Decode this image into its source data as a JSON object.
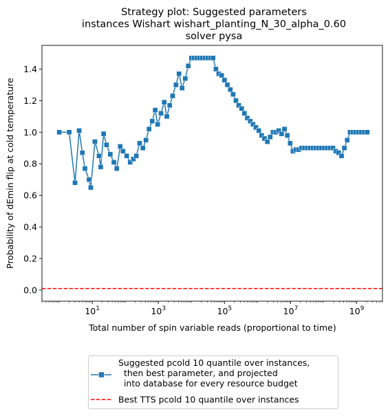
{
  "chart_data": {
    "type": "line",
    "title": [
      "Strategy plot: Suggested parameters",
      "instances Wishart wishart_planting_N_30_alpha_0.60",
      "solver pysa"
    ],
    "xlabel": "Total number of spin variable reads (proportional to time)",
    "ylabel": "Probability of dEmin flip at cold temperature",
    "xscale": "log",
    "xlim": [
      0.3,
      6000000000.0
    ],
    "ylim": [
      -0.07,
      1.55
    ],
    "x_ticks": [
      {
        "value": 10,
        "base": "10",
        "exp": "1"
      },
      {
        "value": 1000,
        "base": "10",
        "exp": "3"
      },
      {
        "value": 100000,
        "base": "10",
        "exp": "5"
      },
      {
        "value": 10000000,
        "base": "10",
        "exp": "7"
      },
      {
        "value": 1000000000,
        "base": "10",
        "exp": "9"
      }
    ],
    "y_ticks": [
      "0.0",
      "0.2",
      "0.4",
      "0.6",
      "0.8",
      "1.0",
      "1.2",
      "1.4"
    ],
    "grid": false,
    "legend_position": "below plot, centered",
    "series": [
      {
        "name": "Suggested pcold 10 quantile over instances,\n  then best parameter, and projected\n  into database for every resource budget",
        "color": "#1f77b4",
        "marker": "square",
        "points": [
          [
            1.0,
            1.0
          ],
          [
            2.0,
            1.0
          ],
          [
            3.0,
            0.68
          ],
          [
            4.0,
            1.01
          ],
          [
            5.0,
            0.87
          ],
          [
            6.0,
            0.77
          ],
          [
            8.0,
            0.7
          ],
          [
            9.0,
            0.65
          ],
          [
            12.0,
            0.94
          ],
          [
            16.0,
            0.85
          ],
          [
            18.0,
            0.78
          ],
          [
            22.0,
            0.99
          ],
          [
            27.0,
            0.92
          ],
          [
            35.0,
            0.86
          ],
          [
            45.0,
            0.81
          ],
          [
            55.0,
            0.77
          ],
          [
            70.0,
            0.91
          ],
          [
            85.0,
            0.88
          ],
          [
            110.0,
            0.85
          ],
          [
            140.0,
            0.81
          ],
          [
            175.0,
            0.83
          ],
          [
            215.0,
            0.85
          ],
          [
            270.0,
            0.93
          ],
          [
            340.0,
            0.9
          ],
          [
            420.0,
            0.95
          ],
          [
            520.0,
            1.02
          ],
          [
            650.0,
            1.07
          ],
          [
            800.0,
            1.14
          ],
          [
            950.0,
            1.05
          ],
          [
            1200.0,
            1.12
          ],
          [
            1500.0,
            1.19
          ],
          [
            1800.0,
            1.1
          ],
          [
            2200.0,
            1.17
          ],
          [
            2700.0,
            1.23
          ],
          [
            3400.0,
            1.3
          ],
          [
            4200.0,
            1.37
          ],
          [
            5200.0,
            1.28
          ],
          [
            6500.0,
            1.34
          ],
          [
            8000.0,
            1.42
          ],
          [
            10000.0,
            1.47
          ],
          [
            12000.0,
            1.47
          ],
          [
            14500.0,
            1.47
          ],
          [
            17500.0,
            1.47
          ],
          [
            21000.0,
            1.47
          ],
          [
            25500.0,
            1.47
          ],
          [
            31000.0,
            1.47
          ],
          [
            37500.0,
            1.47
          ],
          [
            45000.0,
            1.47
          ],
          [
            55000.0,
            1.4
          ],
          [
            67000.0,
            1.37
          ],
          [
            82000.0,
            1.36
          ],
          [
            100000.0,
            1.33
          ],
          [
            122000.0,
            1.3
          ],
          [
            150000.0,
            1.27
          ],
          [
            182000.0,
            1.24
          ],
          [
            222000.0,
            1.2
          ],
          [
            270000.0,
            1.17
          ],
          [
            330000.0,
            1.15
          ],
          [
            400000.0,
            1.12
          ],
          [
            490000.0,
            1.09
          ],
          [
            600000.0,
            1.07
          ],
          [
            730000.0,
            1.05
          ],
          [
            890000.0,
            1.03
          ],
          [
            1090000.0,
            1.01
          ],
          [
            1330000.0,
            0.98
          ],
          [
            1620000.0,
            0.96
          ],
          [
            1980000.0,
            0.94
          ],
          [
            2410000.0,
            0.97
          ],
          [
            2940000.0,
            1.0
          ],
          [
            3590000.0,
            1.0
          ],
          [
            4380000.0,
            1.01
          ],
          [
            5340000.0,
            0.99
          ],
          [
            6520000.0,
            1.02
          ],
          [
            7950000.0,
            0.98
          ],
          [
            9700000.0,
            0.93
          ],
          [
            11800000.0,
            0.88
          ],
          [
            14400000.0,
            0.89
          ],
          [
            17600000.0,
            0.89
          ],
          [
            21500000.0,
            0.9
          ],
          [
            26200000.0,
            0.9
          ],
          [
            32000000.0,
            0.9
          ],
          [
            39000000.0,
            0.9
          ],
          [
            47500000.0,
            0.9
          ],
          [
            58000000.0,
            0.9
          ],
          [
            70700000.0,
            0.9
          ],
          [
            86300000.0,
            0.9
          ],
          [
            105000000.0,
            0.9
          ],
          [
            128000000.0,
            0.9
          ],
          [
            157000000.0,
            0.9
          ],
          [
            191000000.0,
            0.9
          ],
          [
            233000000.0,
            0.88
          ],
          [
            284000000.0,
            0.87
          ],
          [
            347000000.0,
            0.85
          ],
          [
            423000000.0,
            0.9
          ],
          [
            516000000.0,
            0.95
          ],
          [
            630000000.0,
            1.0
          ],
          [
            768000000.0,
            1.0
          ],
          [
            937000000.0,
            1.0
          ],
          [
            1140000000.0,
            1.0
          ],
          [
            1390000000.0,
            1.0
          ],
          [
            1700000000.0,
            1.0
          ],
          [
            2080000000.0,
            1.0
          ]
        ]
      },
      {
        "name": "Best TTS pcold 10 quantile over instances",
        "color": "#ff0000",
        "linestyle": "dashed",
        "y": 0.01
      }
    ]
  }
}
